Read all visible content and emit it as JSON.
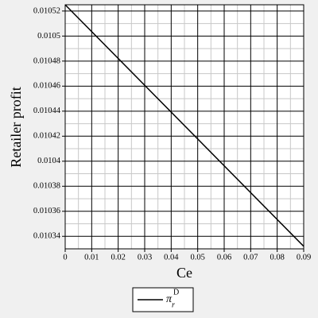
{
  "chart_data": {
    "type": "line",
    "x_label": "Ce",
    "y_label": "Retailer  profit",
    "x": [
      0,
      0.09
    ],
    "series": [
      {
        "name": "π",
        "name_subscript": "r",
        "name_superscript": "D",
        "color": "#000000",
        "values": [
          0.010525,
          0.010332
        ]
      }
    ],
    "xlim": [
      0,
      0.09
    ],
    "xticks": [
      0,
      0.01,
      0.02,
      0.03,
      0.04,
      0.05,
      0.06,
      0.07,
      0.08,
      0.09
    ],
    "ylim": [
      0.01033,
      0.010525
    ],
    "yticks": [
      0.01034,
      0.01036,
      0.01038,
      0.0104,
      0.01042,
      0.01044,
      0.01046,
      0.01048,
      0.0105,
      0.01052
    ],
    "grid": true
  }
}
